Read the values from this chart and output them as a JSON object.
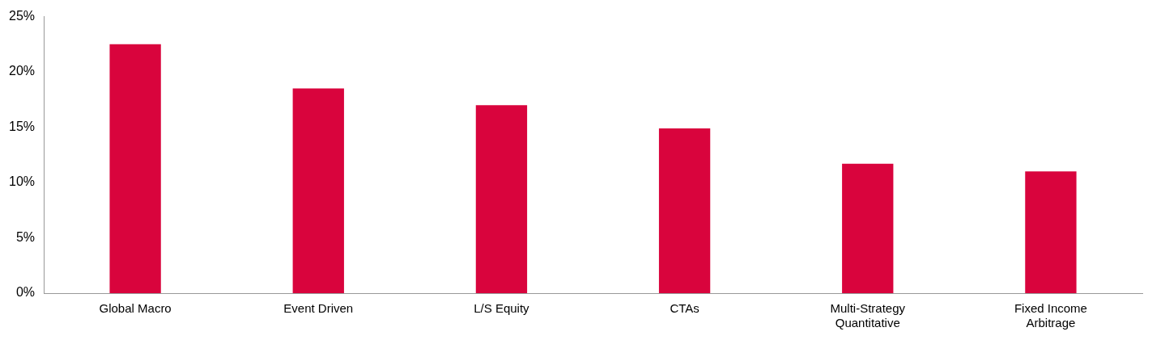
{
  "chart_data": {
    "type": "bar",
    "categories": [
      "Global Macro",
      "Event Driven",
      "L/S Equity",
      "CTAs",
      "Multi-Strategy Quantitative",
      "Fixed Income Arbitrage"
    ],
    "values": [
      22.5,
      18.5,
      17.0,
      14.9,
      11.7,
      11.0
    ],
    "color": "#d9043d",
    "ylim": [
      0,
      25
    ],
    "yticks": [
      {
        "value": 0,
        "label": "0%"
      },
      {
        "value": 5,
        "label": "5%"
      },
      {
        "value": 10,
        "label": "10%"
      },
      {
        "value": 15,
        "label": "15%"
      },
      {
        "value": 20,
        "label": "20%"
      },
      {
        "value": 25,
        "label": "25%"
      }
    ],
    "grid": false
  }
}
